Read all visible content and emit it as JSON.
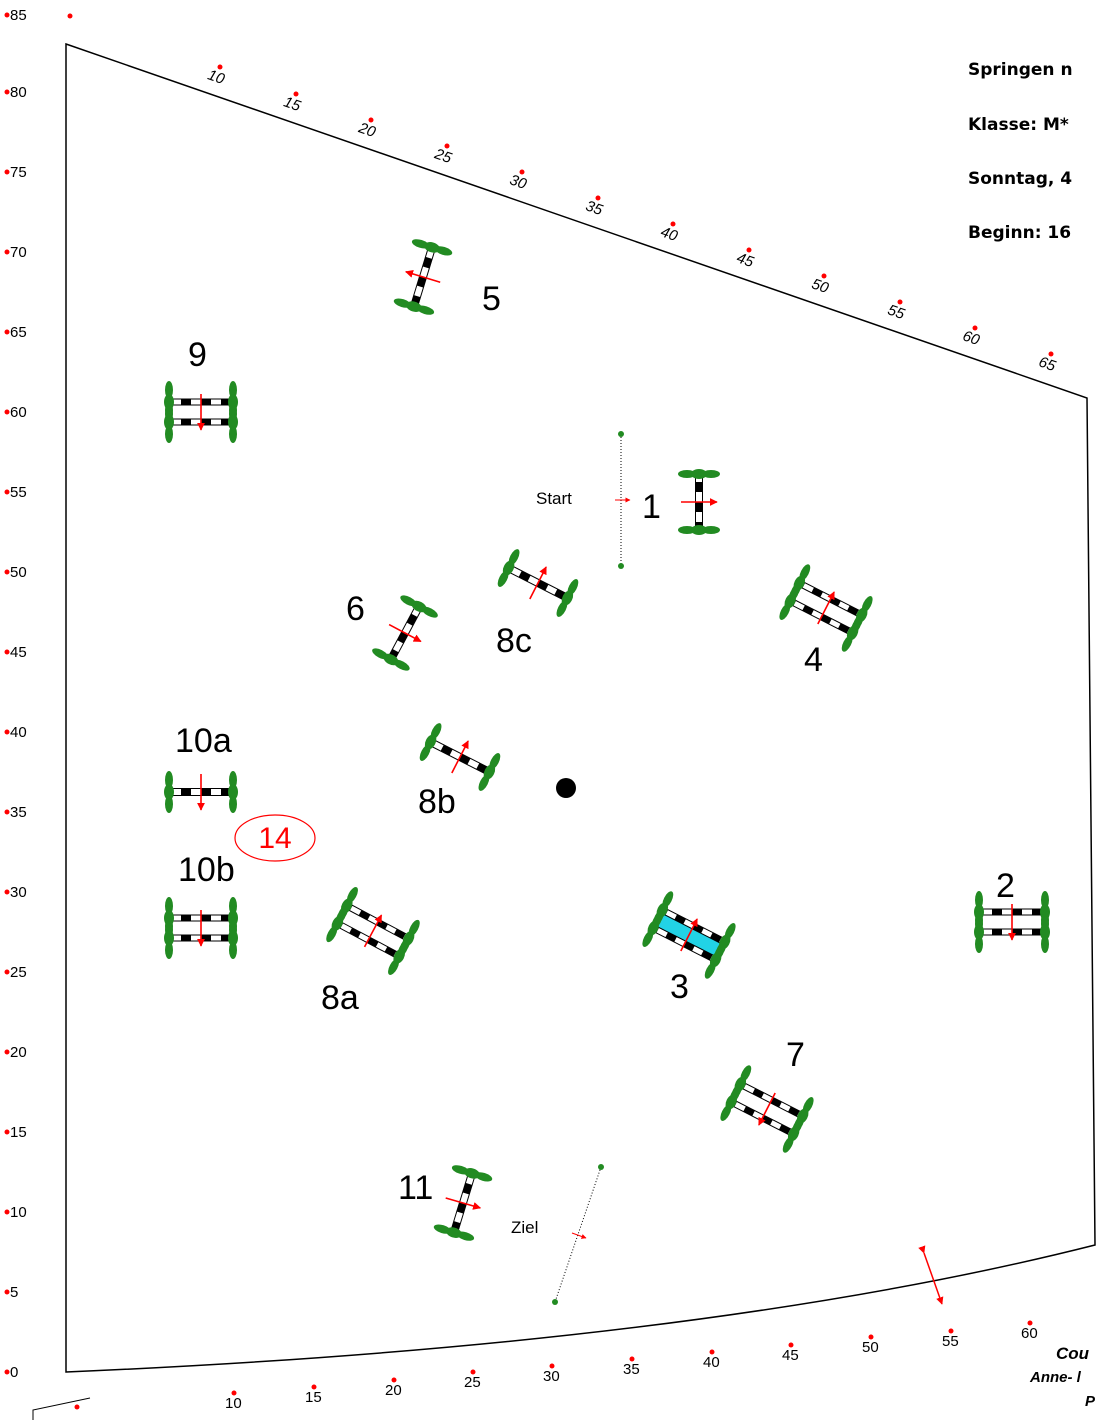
{
  "header": {
    "line1": "Springen n",
    "line2": "Klasse: M*",
    "line3": "Sonntag, 4",
    "line4": "Beginn: 16"
  },
  "credits": {
    "line1": "Cou",
    "line2": "Anne- l",
    "line3": "P"
  },
  "left_scale": [
    "0",
    "5",
    "10",
    "15",
    "20",
    "25",
    "30",
    "35",
    "40",
    "45",
    "50",
    "55",
    "60",
    "65",
    "70",
    "75",
    "80",
    "85"
  ],
  "top_scale": [
    "10",
    "15",
    "20",
    "25",
    "30",
    "35",
    "40",
    "45",
    "50",
    "55",
    "60",
    "65"
  ],
  "bottom_scale": [
    "10",
    "15",
    "20",
    "25",
    "30",
    "35",
    "40",
    "45",
    "50",
    "55",
    "60"
  ],
  "labels": {
    "start": "Start",
    "finish": "Ziel",
    "note_number": "14"
  },
  "obstacles": [
    {
      "number": "1",
      "type": "vertical"
    },
    {
      "number": "2",
      "type": "oxer"
    },
    {
      "number": "3",
      "type": "water-oxer"
    },
    {
      "number": "4",
      "type": "oxer"
    },
    {
      "number": "5",
      "type": "vertical"
    },
    {
      "number": "6",
      "type": "vertical"
    },
    {
      "number": "7",
      "type": "oxer"
    },
    {
      "number": "8a",
      "type": "oxer"
    },
    {
      "number": "8b",
      "type": "vertical"
    },
    {
      "number": "8c",
      "type": "vertical"
    },
    {
      "number": "9",
      "type": "oxer"
    },
    {
      "number": "10a",
      "type": "vertical"
    },
    {
      "number": "10b",
      "type": "oxer"
    },
    {
      "number": "11",
      "type": "vertical"
    }
  ],
  "colors": {
    "pole_black": "#000000",
    "wing_green": "#228b22",
    "arrow_red": "#ff0000",
    "water_cyan": "#22d3e6",
    "note_red": "#ff0000"
  }
}
